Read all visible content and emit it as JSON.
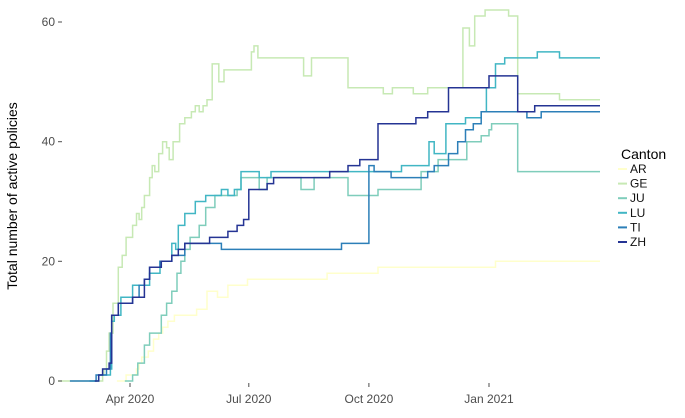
{
  "figure": {
    "background": "#ffffff"
  },
  "chart_data": {
    "type": "line",
    "step": true,
    "title": "",
    "xlabel": "",
    "ylabel": "Total number of active policies",
    "ylim": [
      0,
      62
    ],
    "y_ticks": [
      0,
      20,
      40,
      60
    ],
    "x_ticks": [
      {
        "date": "2020-04-01",
        "label": "Apr 2020"
      },
      {
        "date": "2020-07-01",
        "label": "Jul 2020"
      },
      {
        "date": "2020-10-01",
        "label": "Oct 2020"
      },
      {
        "date": "2021-01-01",
        "label": "Jan 2021"
      }
    ],
    "grid": "off",
    "legend": {
      "title": "Canton",
      "position": "right"
    },
    "series": [
      {
        "name": "AR",
        "color": "#ffffcc",
        "points": [
          [
            "2020-03-22",
            0
          ],
          [
            "2020-03-29",
            1
          ],
          [
            "2020-04-06",
            2
          ],
          [
            "2020-04-08",
            3
          ],
          [
            "2020-04-10",
            4
          ],
          [
            "2020-04-15",
            5
          ],
          [
            "2020-04-19",
            7
          ],
          [
            "2020-04-23",
            8
          ],
          [
            "2020-04-26",
            9
          ],
          [
            "2020-04-30",
            10
          ],
          [
            "2020-05-05",
            11
          ],
          [
            "2020-05-22",
            12
          ],
          [
            "2020-05-30",
            15
          ],
          [
            "2020-06-07",
            14
          ],
          [
            "2020-06-15",
            16
          ],
          [
            "2020-06-30",
            17
          ],
          [
            "2020-08-30",
            18
          ],
          [
            "2020-10-08",
            19
          ],
          [
            "2021-01-06",
            20
          ],
          [
            "2021-03-27",
            20
          ]
        ]
      },
      {
        "name": "GE",
        "color": "#c7e9b4",
        "points": [
          [
            "2020-02-06",
            0
          ],
          [
            "2020-03-11",
            1
          ],
          [
            "2020-03-12",
            2
          ],
          [
            "2020-03-14",
            5
          ],
          [
            "2020-03-16",
            8
          ],
          [
            "2020-03-19",
            13
          ],
          [
            "2020-03-23",
            19
          ],
          [
            "2020-03-26",
            21
          ],
          [
            "2020-03-29",
            24
          ],
          [
            "2020-04-03",
            26
          ],
          [
            "2020-04-06",
            28
          ],
          [
            "2020-04-08",
            27
          ],
          [
            "2020-04-10",
            29
          ],
          [
            "2020-04-12",
            31
          ],
          [
            "2020-04-16",
            34
          ],
          [
            "2020-04-18",
            36
          ],
          [
            "2020-04-20",
            35
          ],
          [
            "2020-04-23",
            38
          ],
          [
            "2020-04-26",
            40
          ],
          [
            "2020-04-29",
            39
          ],
          [
            "2020-05-01",
            37
          ],
          [
            "2020-05-04",
            40
          ],
          [
            "2020-05-09",
            43
          ],
          [
            "2020-05-13",
            44
          ],
          [
            "2020-05-18",
            45
          ],
          [
            "2020-05-21",
            46
          ],
          [
            "2020-05-24",
            45
          ],
          [
            "2020-05-27",
            46
          ],
          [
            "2020-05-30",
            47
          ],
          [
            "2020-06-03",
            53
          ],
          [
            "2020-06-08",
            50
          ],
          [
            "2020-06-12",
            52
          ],
          [
            "2020-07-03",
            55
          ],
          [
            "2020-07-05",
            56
          ],
          [
            "2020-07-08",
            54
          ],
          [
            "2020-08-12",
            51
          ],
          [
            "2020-08-18",
            54
          ],
          [
            "2020-09-15",
            49
          ],
          [
            "2020-10-12",
            48
          ],
          [
            "2020-10-19",
            49
          ],
          [
            "2020-11-04",
            48
          ],
          [
            "2020-11-15",
            49
          ],
          [
            "2020-12-12",
            59
          ],
          [
            "2020-12-17",
            56
          ],
          [
            "2020-12-21",
            61
          ],
          [
            "2020-12-29",
            62
          ],
          [
            "2021-01-16",
            61
          ],
          [
            "2021-01-23",
            48
          ],
          [
            "2021-02-24",
            47
          ],
          [
            "2021-03-27",
            47
          ]
        ]
      },
      {
        "name": "JU",
        "color": "#7fcdbb",
        "points": [
          [
            "2020-03-28",
            0
          ],
          [
            "2020-04-03",
            1
          ],
          [
            "2020-04-07",
            3
          ],
          [
            "2020-04-12",
            6
          ],
          [
            "2020-04-16",
            8
          ],
          [
            "2020-04-25",
            11
          ],
          [
            "2020-04-29",
            13
          ],
          [
            "2020-05-03",
            15
          ],
          [
            "2020-05-07",
            18
          ],
          [
            "2020-05-10",
            20
          ],
          [
            "2020-05-13",
            22
          ],
          [
            "2020-05-17",
            24
          ],
          [
            "2020-05-24",
            26
          ],
          [
            "2020-05-29",
            29
          ],
          [
            "2020-06-05",
            31
          ],
          [
            "2020-06-22",
            32
          ],
          [
            "2020-06-25",
            34
          ],
          [
            "2020-07-09",
            32
          ],
          [
            "2020-07-15",
            34
          ],
          [
            "2020-08-10",
            32
          ],
          [
            "2020-08-20",
            34
          ],
          [
            "2020-09-15",
            31
          ],
          [
            "2020-10-08",
            32
          ],
          [
            "2020-11-10",
            35
          ],
          [
            "2020-11-23",
            37
          ],
          [
            "2020-12-15",
            40
          ],
          [
            "2020-12-26",
            41
          ],
          [
            "2021-01-01",
            42
          ],
          [
            "2021-01-03",
            43
          ],
          [
            "2021-01-23",
            35
          ],
          [
            "2021-03-27",
            35
          ]
        ]
      },
      {
        "name": "LU",
        "color": "#41b6c4",
        "points": [
          [
            "2020-03-01",
            0
          ],
          [
            "2020-03-08",
            1
          ],
          [
            "2020-03-17",
            2
          ],
          [
            "2020-03-18",
            10
          ],
          [
            "2020-03-20",
            11
          ],
          [
            "2020-03-25",
            14
          ],
          [
            "2020-04-03",
            16
          ],
          [
            "2020-04-16",
            18
          ],
          [
            "2020-04-24",
            20
          ],
          [
            "2020-05-03",
            23
          ],
          [
            "2020-05-06",
            22
          ],
          [
            "2020-05-08",
            26
          ],
          [
            "2020-05-13",
            28
          ],
          [
            "2020-05-21",
            30
          ],
          [
            "2020-05-29",
            31
          ],
          [
            "2020-06-10",
            32
          ],
          [
            "2020-06-15",
            31
          ],
          [
            "2020-06-20",
            32
          ],
          [
            "2020-06-25",
            35
          ],
          [
            "2020-07-09",
            34
          ],
          [
            "2020-07-18",
            35
          ],
          [
            "2020-10-26",
            36
          ],
          [
            "2020-11-16",
            40
          ],
          [
            "2020-11-20",
            38
          ],
          [
            "2020-11-29",
            43
          ],
          [
            "2020-12-14",
            44
          ],
          [
            "2020-12-26",
            45
          ],
          [
            "2020-12-30",
            49
          ],
          [
            "2021-01-06",
            53
          ],
          [
            "2021-01-13",
            54
          ],
          [
            "2021-02-07",
            55
          ],
          [
            "2021-02-24",
            54
          ],
          [
            "2021-03-27",
            54
          ]
        ]
      },
      {
        "name": "TI",
        "color": "#2c7fb8",
        "points": [
          [
            "2020-02-15",
            0
          ],
          [
            "2020-03-06",
            1
          ],
          [
            "2020-03-14",
            2
          ],
          [
            "2020-03-17",
            8
          ],
          [
            "2020-03-18",
            11
          ],
          [
            "2020-03-23",
            13
          ],
          [
            "2020-04-03",
            14
          ],
          [
            "2020-04-08",
            16
          ],
          [
            "2020-04-12",
            17
          ],
          [
            "2020-04-16",
            19
          ],
          [
            "2020-04-24",
            20
          ],
          [
            "2020-05-03",
            21
          ],
          [
            "2020-05-13",
            23
          ],
          [
            "2020-06-10",
            22
          ],
          [
            "2020-09-10",
            23
          ],
          [
            "2020-10-01",
            36
          ],
          [
            "2020-10-05",
            35
          ],
          [
            "2020-10-18",
            34
          ],
          [
            "2020-11-15",
            35
          ],
          [
            "2020-11-20",
            36
          ],
          [
            "2020-12-01",
            38
          ],
          [
            "2020-12-08",
            40
          ],
          [
            "2020-12-14",
            42
          ],
          [
            "2020-12-20",
            43
          ],
          [
            "2020-12-26",
            45
          ],
          [
            "2021-01-30",
            44
          ],
          [
            "2021-02-10",
            45
          ],
          [
            "2021-03-27",
            45
          ]
        ]
      },
      {
        "name": "ZH",
        "color": "#253494",
        "points": [
          [
            "2020-03-05",
            0
          ],
          [
            "2020-03-08",
            1
          ],
          [
            "2020-03-11",
            2
          ],
          [
            "2020-03-16",
            3
          ],
          [
            "2020-03-18",
            11
          ],
          [
            "2020-03-23",
            13
          ],
          [
            "2020-04-03",
            14
          ],
          [
            "2020-04-12",
            17
          ],
          [
            "2020-04-16",
            19
          ],
          [
            "2020-04-25",
            20
          ],
          [
            "2020-05-03",
            21
          ],
          [
            "2020-05-08",
            22
          ],
          [
            "2020-05-13",
            23
          ],
          [
            "2020-06-01",
            24
          ],
          [
            "2020-06-15",
            25
          ],
          [
            "2020-06-22",
            26
          ],
          [
            "2020-06-27",
            27
          ],
          [
            "2020-07-01",
            32
          ],
          [
            "2020-07-15",
            33
          ],
          [
            "2020-07-20",
            34
          ],
          [
            "2020-09-01",
            35
          ],
          [
            "2020-09-15",
            36
          ],
          [
            "2020-09-24",
            37
          ],
          [
            "2020-10-08",
            43
          ],
          [
            "2020-11-06",
            44
          ],
          [
            "2020-11-15",
            45
          ],
          [
            "2020-12-01",
            49
          ],
          [
            "2021-01-01",
            51
          ],
          [
            "2021-01-23",
            45
          ],
          [
            "2021-02-05",
            46
          ],
          [
            "2021-03-27",
            46
          ]
        ]
      }
    ]
  }
}
